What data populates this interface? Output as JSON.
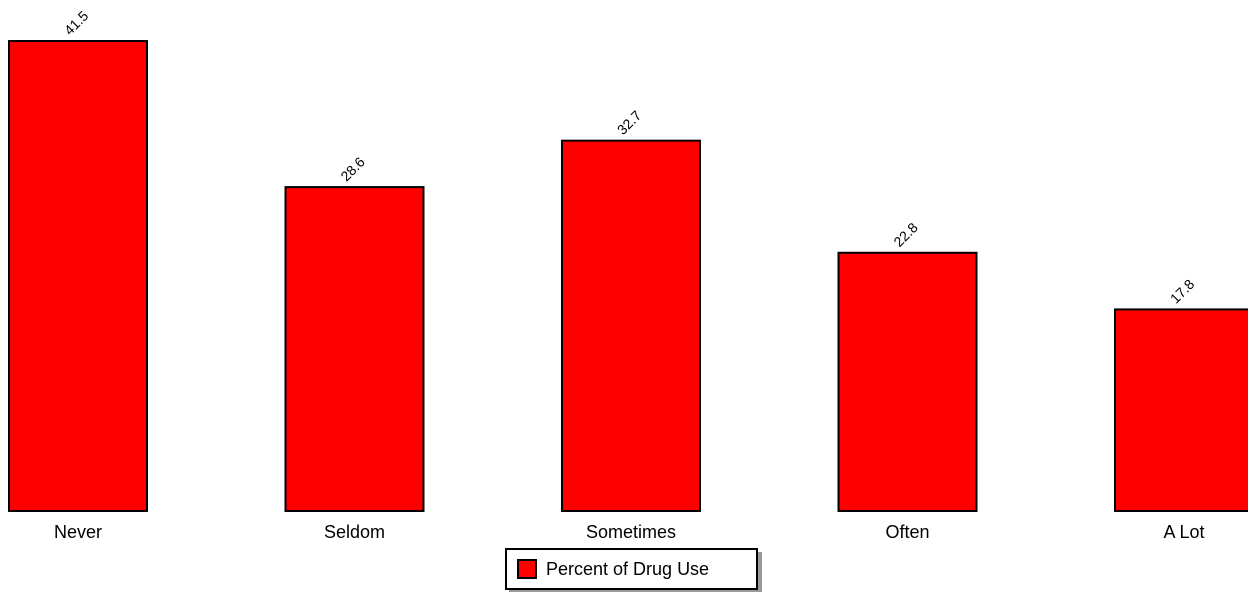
{
  "chart_data": {
    "type": "bar",
    "categories": [
      "Never",
      "Seldom",
      "Sometimes",
      "Often",
      "A Lot"
    ],
    "series": [
      {
        "name": "Percent of Drug Use",
        "values": [
          41.5,
          28.6,
          32.7,
          22.8,
          17.8
        ],
        "color": "#ff0000"
      }
    ],
    "ylim": [
      0,
      41.5
    ],
    "grid": false,
    "legend_position": "bottom-center",
    "data_labels": true
  }
}
